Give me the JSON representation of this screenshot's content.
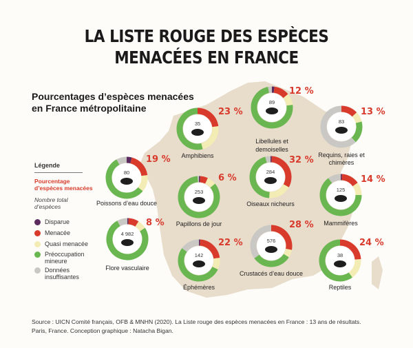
{
  "title_line1": "LA LISTE ROUGE DES ESPÈCES",
  "title_line2": "MENACÉES EN FRANCE",
  "subtitle_line1": "Pourcentages d’espèces menacées",
  "subtitle_line2": "en France métropolitaine",
  "legend": {
    "title": "Légende",
    "percent_label": "Pourcentage d’espèces menacées",
    "count_label": "Nombre total d’espèces",
    "items": [
      {
        "label": "Disparue",
        "color": "#5b2a5e"
      },
      {
        "label": "Menacée",
        "color": "#d83a2c"
      },
      {
        "label": "Quasi menacée",
        "color": "#f3ecb4"
      },
      {
        "label": "Préoccupation mineure",
        "color": "#6ab651"
      },
      {
        "label": "Données insuffisantes",
        "color": "#c9c8c4"
      }
    ]
  },
  "colors": {
    "extinct": "#5b2a5e",
    "threatened": "#d83a2c",
    "near_threatened": "#f3ecb4",
    "least_concern": "#6ab651",
    "data_deficient": "#c9c8c4",
    "map": "#e8dccb"
  },
  "chart_data": {
    "type": "pie",
    "segment_order": [
      "Disparue",
      "Menacée",
      "Quasi menacée",
      "Préoccupation mineure",
      "Données insuffisantes"
    ],
    "groups": [
      {
        "name": "Libellules et demoiselles",
        "threatened_pct": "12 %",
        "count": "89",
        "icon": "dragonfly-icon",
        "segments": [
          2,
          12,
          9,
          74,
          3
        ]
      },
      {
        "name": "Amphibiens",
        "threatened_pct": "23 %",
        "count": "35",
        "icon": "frog-icon",
        "segments": [
          0,
          23,
          23,
          54,
          0
        ]
      },
      {
        "name": "Requins, raies et chimères",
        "threatened_pct": "13 %",
        "count": "83",
        "icon": "shark-icon",
        "segments": [
          0,
          13,
          8,
          17,
          62
        ]
      },
      {
        "name": "Poissons d’eau douce",
        "threatened_pct": "19 %",
        "count": "80",
        "icon": "fish-icon",
        "segments": [
          4,
          19,
          13,
          56,
          8
        ]
      },
      {
        "name": "Papillons de jour",
        "threatened_pct": "6 %",
        "count": "253",
        "icon": "butterfly-icon",
        "segments": [
          1,
          6,
          7,
          85,
          1
        ]
      },
      {
        "name": "Oiseaux nicheurs",
        "threatened_pct": "32 %",
        "count": "284",
        "icon": "bird-icon",
        "segments": [
          1,
          32,
          18,
          45,
          4
        ]
      },
      {
        "name": "Mammifères",
        "threatened_pct": "14 %",
        "count": "125",
        "icon": "fox-icon",
        "segments": [
          1,
          14,
          10,
          65,
          10
        ]
      },
      {
        "name": "Flore vasculaire",
        "threatened_pct": "8 %",
        "count": "4 982",
        "icon": "plant-icon",
        "segments": [
          1,
          8,
          7,
          76,
          8
        ]
      },
      {
        "name": "Éphémères",
        "threatened_pct": "22 %",
        "count": "142",
        "icon": "mayfly-icon",
        "segments": [
          1,
          22,
          9,
          53,
          15
        ]
      },
      {
        "name": "Crustacés d’eau douce",
        "threatened_pct": "28 %",
        "count": "576",
        "icon": "crayfish-icon",
        "segments": [
          0,
          28,
          6,
          31,
          35
        ]
      },
      {
        "name": "Reptiles",
        "threatened_pct": "24 %",
        "count": "38",
        "icon": "lizard-icon",
        "segments": [
          0,
          24,
          16,
          60,
          0
        ]
      }
    ]
  },
  "source_line1": "Source : UICN Comité français, OFB & MNHN (2020). La Liste rouge des espèces menacées en France : 13 ans de résultats.",
  "source_line2": "Paris, France. Conception graphique : Natacha Bigan."
}
